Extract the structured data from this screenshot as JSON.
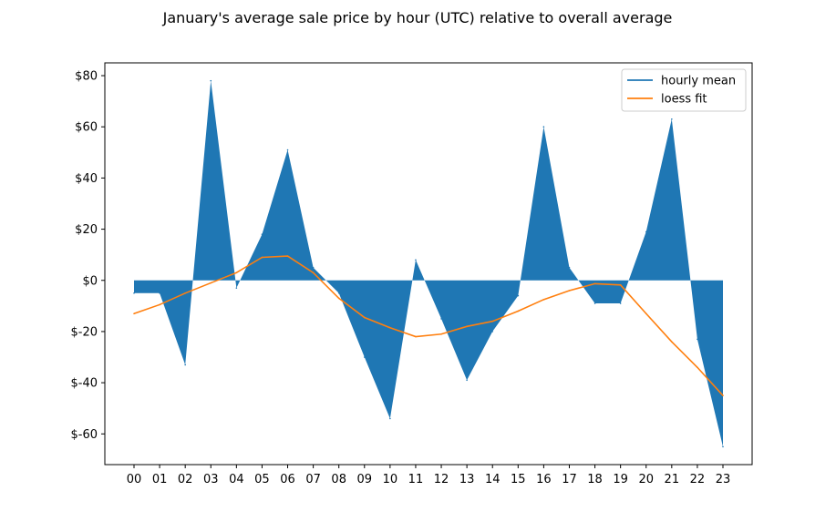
{
  "chart_data": {
    "type": "area",
    "title": "January's average sale price by hour (UTC) relative to overall average",
    "xlabel": "",
    "ylabel": "",
    "categories": [
      "00",
      "01",
      "02",
      "03",
      "04",
      "05",
      "06",
      "07",
      "08",
      "09",
      "10",
      "11",
      "12",
      "13",
      "14",
      "15",
      "16",
      "17",
      "18",
      "19",
      "20",
      "21",
      "22",
      "23"
    ],
    "ylim": [
      -72,
      85
    ],
    "yticks": [
      80,
      60,
      40,
      20,
      0,
      -20,
      -40,
      -60
    ],
    "ytick_labels": [
      "$80",
      "$60",
      "$40",
      "$20",
      "$0",
      "$-20",
      "$-40",
      "$-60"
    ],
    "grid": false,
    "legend_position": "top-right",
    "series": [
      {
        "name": "hourly mean",
        "color": "#1f77b4",
        "render": "fill-to-zero",
        "values": [
          -5,
          -5,
          -33,
          78,
          -3,
          18,
          51,
          5,
          -5,
          -30,
          -54,
          8,
          -15,
          -39,
          -20,
          -6,
          60,
          5,
          -9,
          -9,
          19,
          63,
          -23,
          -65
        ]
      },
      {
        "name": "loess fit",
        "color": "#ff7f0e",
        "render": "line",
        "values": [
          -13,
          -9.5,
          -5,
          -1,
          3,
          9,
          9.5,
          3,
          -7,
          -14.5,
          -18.5,
          -22,
          -21,
          -18,
          -16,
          -12,
          -7.5,
          -4,
          -1.3,
          -1.8,
          -13,
          -24,
          -34,
          -45
        ]
      }
    ]
  }
}
